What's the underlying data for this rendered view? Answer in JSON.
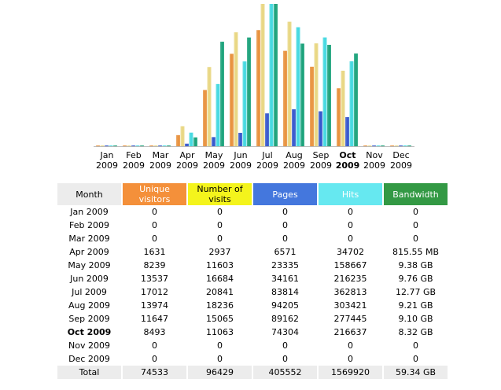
{
  "chart_data": {
    "type": "bar",
    "title": "",
    "categories": [
      "Jan",
      "Feb",
      "Mar",
      "Apr",
      "May",
      "Jun",
      "Jul",
      "Aug",
      "Sep",
      "Oct",
      "Nov",
      "Dec"
    ],
    "category_years": [
      "2009",
      "2009",
      "2009",
      "2009",
      "2009",
      "2009",
      "2009",
      "2009",
      "2009",
      "2009",
      "2009",
      "2009"
    ],
    "highlight_index": 9,
    "series": [
      {
        "name": "Unique visitors",
        "color": "#e8903a",
        "values": [
          0,
          0,
          0,
          1631,
          8239,
          13537,
          17012,
          13974,
          11647,
          8493,
          0,
          0
        ]
      },
      {
        "name": "Number of visits",
        "color": "#e8d680",
        "values": [
          0,
          0,
          0,
          2937,
          11603,
          16684,
          20841,
          18236,
          15065,
          11063,
          0,
          0
        ]
      },
      {
        "name": "Pages",
        "color": "#3355cc",
        "values": [
          0,
          0,
          0,
          6571,
          23335,
          34161,
          83814,
          94205,
          89162,
          74304,
          0,
          0
        ]
      },
      {
        "name": "Hits",
        "color": "#40d8e0",
        "values": [
          0,
          0,
          0,
          34702,
          158667,
          216235,
          362813,
          303421,
          277445,
          216637,
          0,
          0
        ]
      },
      {
        "name": "Bandwidth (GB)",
        "color": "#17a078",
        "values": [
          0,
          0,
          0,
          0.7964,
          9.38,
          9.76,
          12.77,
          9.21,
          9.1,
          8.32,
          0,
          0
        ]
      }
    ],
    "xlabel": "",
    "ylabel": ""
  },
  "table": {
    "headers": {
      "month": "Month",
      "unique": "Unique visitors",
      "visits": "Number of visits",
      "pages": "Pages",
      "hits": "Hits",
      "bandwidth": "Bandwidth"
    },
    "rows": [
      [
        "Jan 2009",
        "0",
        "0",
        "0",
        "0",
        "0"
      ],
      [
        "Feb 2009",
        "0",
        "0",
        "0",
        "0",
        "0"
      ],
      [
        "Mar 2009",
        "0",
        "0",
        "0",
        "0",
        "0"
      ],
      [
        "Apr 2009",
        "1631",
        "2937",
        "6571",
        "34702",
        "815.55 MB"
      ],
      [
        "May 2009",
        "8239",
        "11603",
        "23335",
        "158667",
        "9.38 GB"
      ],
      [
        "Jun 2009",
        "13537",
        "16684",
        "34161",
        "216235",
        "9.76 GB"
      ],
      [
        "Jul 2009",
        "17012",
        "20841",
        "83814",
        "362813",
        "12.77 GB"
      ],
      [
        "Aug 2009",
        "13974",
        "18236",
        "94205",
        "303421",
        "9.21 GB"
      ],
      [
        "Sep 2009",
        "11647",
        "15065",
        "89162",
        "277445",
        "9.10 GB"
      ],
      [
        "Oct 2009",
        "8493",
        "11063",
        "74304",
        "216637",
        "8.32 GB"
      ],
      [
        "Nov 2009",
        "0",
        "0",
        "0",
        "0",
        "0"
      ],
      [
        "Dec 2009",
        "0",
        "0",
        "0",
        "0",
        "0"
      ]
    ],
    "current_row_index": 9,
    "total": [
      "Total",
      "74533",
      "96429",
      "405552",
      "1569920",
      "59.34 GB"
    ]
  }
}
